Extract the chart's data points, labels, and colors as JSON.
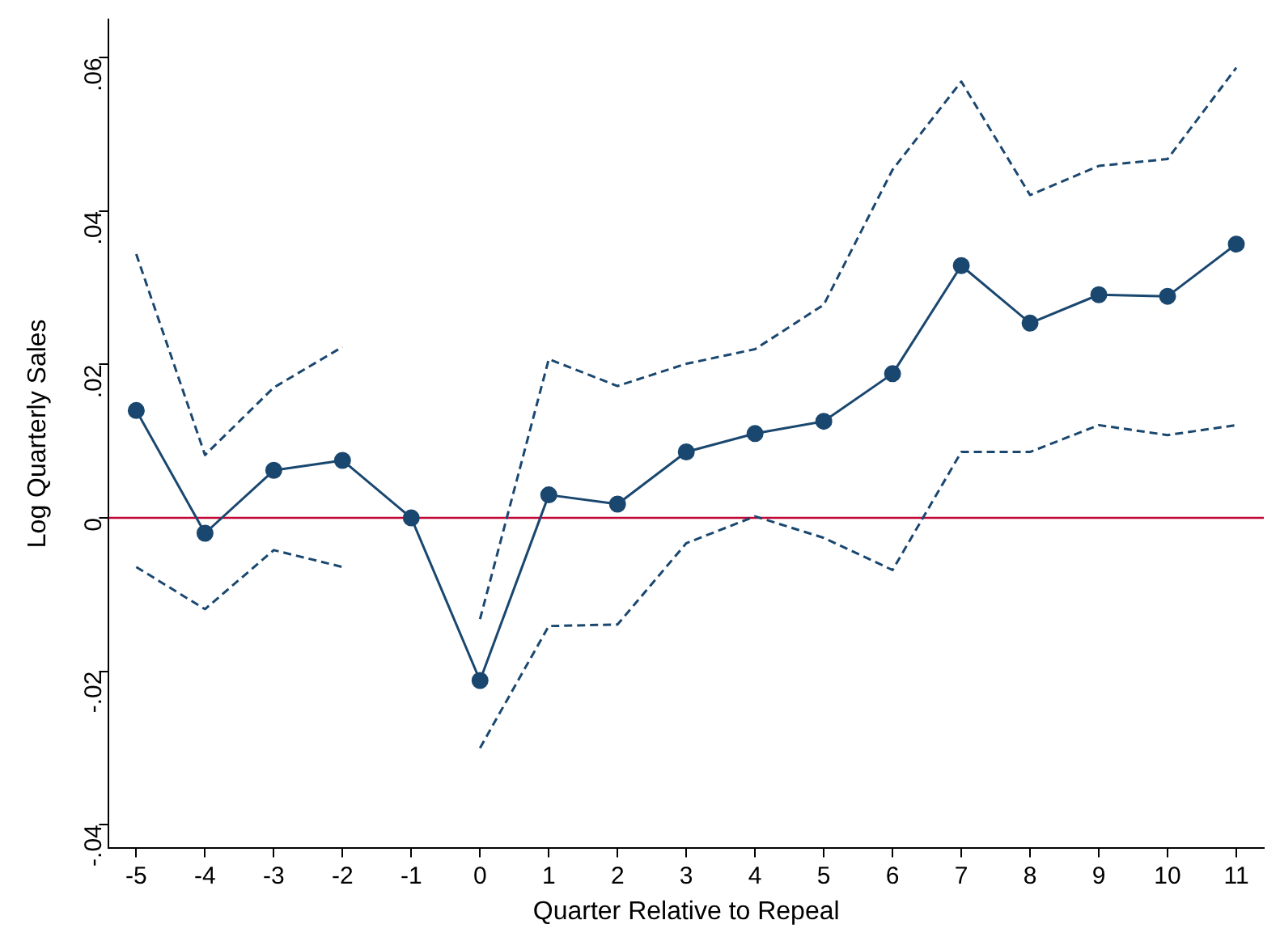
{
  "chart_data": {
    "type": "line",
    "xlabel": "Quarter Relative to Repeal",
    "ylabel": "Log Quarterly Sales",
    "x": [
      -5,
      -4,
      -3,
      -2,
      -1,
      0,
      1,
      2,
      3,
      4,
      5,
      6,
      7,
      8,
      9,
      10,
      11
    ],
    "series": [
      {
        "color": "#1a476f",
        "marker": "circle",
        "line_style": "solid",
        "values": [
          0.014,
          -0.002,
          0.0062,
          0.0075,
          0,
          -0.0212,
          0.003,
          0.0018,
          0.0086,
          0.011,
          0.0126,
          0.0188,
          0.0329,
          0.0254,
          0.0291,
          0.0289,
          0.0357
        ]
      },
      {
        "color": "#1a476f",
        "marker": "none",
        "line_style": "dashed",
        "values": [
          0.0344,
          0.0082,
          0.017,
          0.0223,
          null,
          -0.0132,
          0.0207,
          0.0172,
          0.0201,
          0.022,
          0.0278,
          0.0454,
          0.0569,
          0.0421,
          0.0459,
          0.0468,
          0.0587
        ]
      },
      {
        "color": "#1a476f",
        "marker": "none",
        "line_style": "dashed",
        "values": [
          -0.0064,
          -0.0119,
          -0.0042,
          -0.0064,
          null,
          -0.03,
          -0.0141,
          -0.0139,
          -0.0033,
          0.0002,
          -0.0026,
          -0.0068,
          0.0086,
          0.0086,
          0.0121,
          0.0108,
          0.0121
        ]
      }
    ],
    "xlim": [
      -5.4,
      11.4
    ],
    "xticks": [
      -5,
      -4,
      -3,
      -2,
      -1,
      0,
      1,
      2,
      3,
      4,
      5,
      6,
      7,
      8,
      9,
      10,
      11
    ],
    "ylim": [
      -0.043,
      0.065
    ],
    "yticks": [
      {
        "value": -0.04,
        "label": "-.04"
      },
      {
        "value": -0.02,
        "label": "-.02"
      },
      {
        "value": 0,
        "label": "0"
      },
      {
        "value": 0.02,
        "label": ".02"
      },
      {
        "value": 0.04,
        "label": ".04"
      },
      {
        "value": 0.06,
        "label": ".06"
      }
    ],
    "ref_lines": [
      {
        "axis": "y",
        "value": 0,
        "color": "#c10534"
      }
    ],
    "grid": false,
    "legend": false
  }
}
